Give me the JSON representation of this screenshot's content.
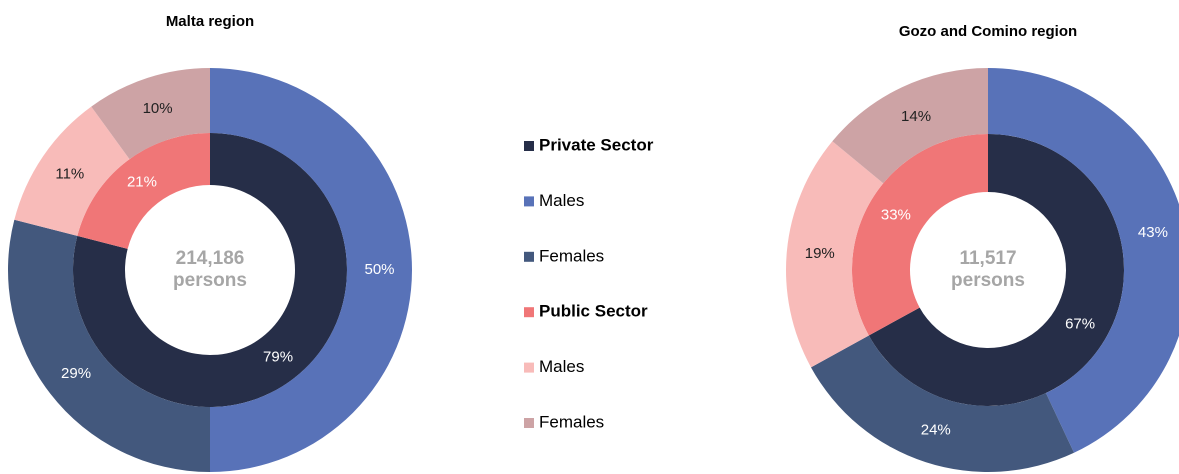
{
  "legend": [
    {
      "name": "Private Sector",
      "color": "#262e48",
      "bold": true
    },
    {
      "name": "Males",
      "color": "#5872b8",
      "bold": false
    },
    {
      "name": "Females",
      "color": "#43587d",
      "bold": false
    },
    {
      "name": "Public Sector",
      "color": "#f07677",
      "bold": true
    },
    {
      "name": "Males",
      "color": "#f8bbb9",
      "bold": false
    },
    {
      "name": "Females",
      "color": "#cda3a5",
      "bold": false
    }
  ],
  "chart_data": [
    {
      "type": "donut",
      "title": "Malta region",
      "annotations": [
        "214,186",
        "persons"
      ],
      "rings": [
        {
          "values": [
            79,
            21
          ],
          "value_labels": [
            "79%",
            "21%"
          ],
          "colors": [
            "#262e48",
            "#f07677"
          ]
        },
        {
          "values": [
            50,
            29,
            11,
            10
          ],
          "value_labels": [
            "50%",
            "29%",
            "11%",
            "10%"
          ],
          "colors": [
            "#5872b8",
            "#43587d",
            "#f8bbb9",
            "#cda3a5"
          ]
        }
      ]
    },
    {
      "type": "donut",
      "title": "Gozo and Comino region",
      "annotations": [
        "11,517",
        "persons"
      ],
      "rings": [
        {
          "values": [
            67,
            33
          ],
          "value_labels": [
            "67%",
            "33%"
          ],
          "colors": [
            "#262e48",
            "#f07677"
          ]
        },
        {
          "values": [
            43,
            24,
            19,
            14
          ],
          "value_labels": [
            "43%",
            "24%",
            "19%",
            "14%"
          ],
          "colors": [
            "#5872b8",
            "#43587d",
            "#f8bbb9",
            "#cda3a5"
          ]
        }
      ]
    }
  ]
}
